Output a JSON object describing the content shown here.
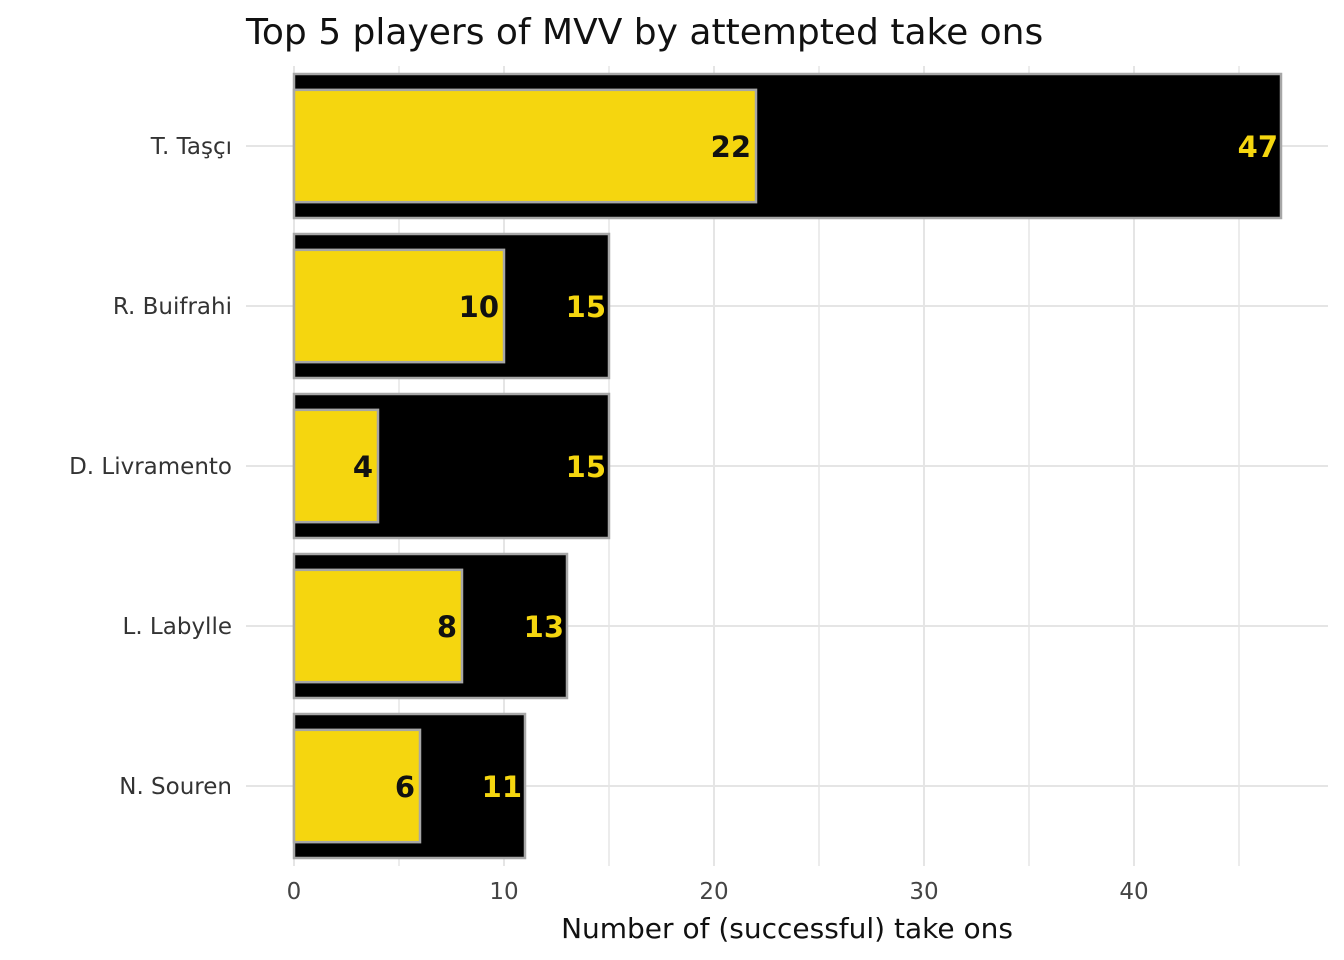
{
  "chart_data": {
    "type": "bar",
    "orientation": "horizontal",
    "title": "Top 5 players of MVV by attempted take ons",
    "xlabel": "Number of (successful) take ons",
    "ylabel": "",
    "xlim": [
      0,
      49
    ],
    "xticks": [
      0,
      10,
      20,
      30,
      40
    ],
    "grid": true,
    "categories": [
      "T. Taşçı",
      "R. Buifrahi",
      "D. Livramento",
      "L. Labylle",
      "N. Souren"
    ],
    "series": [
      {
        "values": [
          47,
          15,
          15,
          13,
          11
        ],
        "color": "#000000"
      },
      {
        "values": [
          22,
          10,
          4,
          8,
          6
        ],
        "color": "#F5D60F"
      }
    ],
    "colors": {
      "grid": "#E5E5E5",
      "outline": "#A7A7A7",
      "label_outer": "#F5D60F",
      "label_inner": "#111111"
    }
  }
}
